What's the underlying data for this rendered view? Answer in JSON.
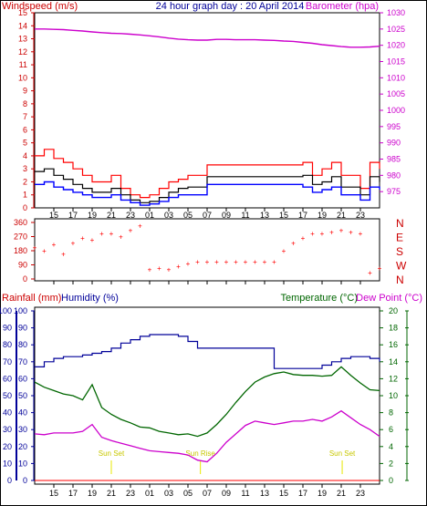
{
  "chart_data": [
    {
      "type": "line",
      "title": "24 hour graph day : 20 April 2014",
      "left_label": "Windspeed (m/s)",
      "right_label": "Barometer (hpa)",
      "y_left_range": [
        0,
        15
      ],
      "y_left_ticks": [
        "0",
        "1",
        "2",
        "3",
        "4",
        "5",
        "6",
        "7",
        "8",
        "9",
        "10",
        "11",
        "12",
        "13",
        "14",
        "15"
      ],
      "y_right_range": [
        970,
        1030
      ],
      "y_right_ticks": [
        "975",
        "980",
        "985",
        "990",
        "995",
        "1000",
        "1005",
        "1010",
        "1015",
        "1020",
        "1025",
        "1030"
      ],
      "x_hours": [
        13,
        14,
        15,
        16,
        17,
        18,
        19,
        20,
        21,
        22,
        23,
        24,
        25,
        26,
        27,
        28,
        29,
        30,
        31,
        32,
        33,
        34,
        35,
        36,
        37,
        38,
        39,
        40,
        41,
        42,
        43,
        44,
        45,
        46,
        47,
        48,
        49
      ],
      "barometer": [
        1025,
        1025,
        1024.9,
        1024.8,
        1024.6,
        1024.4,
        1024.1,
        1023.9,
        1023.7,
        1023.6,
        1023.4,
        1023.2,
        1022.9,
        1022.6,
        1022.2,
        1021.9,
        1021.7,
        1021.6,
        1021.6,
        1021.8,
        1021.8,
        1021.7,
        1021.7,
        1021.7,
        1021.6,
        1021.5,
        1021.3,
        1021.2,
        1020.9,
        1020.6,
        1020.2,
        1019.9,
        1019.6,
        1019.4,
        1019.4,
        1019.5,
        1019.7
      ],
      "gust": [
        4,
        4.5,
        3.8,
        3.5,
        3,
        2.5,
        2,
        2,
        2.5,
        1.5,
        1,
        0.8,
        1,
        1.5,
        2,
        2.2,
        2.5,
        2.5,
        3.3,
        3.3,
        3.3,
        3.3,
        3.3,
        3.3,
        3.3,
        3.3,
        3.3,
        3.3,
        3.5,
        2.5,
        3,
        3.5,
        2.5,
        2.5,
        1.5,
        3.5,
        3
      ],
      "wind_avg": [
        2.8,
        3,
        2.5,
        2.2,
        1.8,
        1.5,
        1.2,
        1.2,
        1.5,
        1,
        0.6,
        0.4,
        0.5,
        0.8,
        1.2,
        1.5,
        1.6,
        1.6,
        2.4,
        2.4,
        2.4,
        2.4,
        2.4,
        2.4,
        2.4,
        2.4,
        2.4,
        2.4,
        2.5,
        1.8,
        2,
        2.4,
        1.6,
        1.6,
        1,
        2.4,
        2
      ],
      "wind_low": [
        1.8,
        2,
        1.6,
        1.4,
        1.2,
        1,
        0.8,
        0.8,
        1,
        0.6,
        0.4,
        0.2,
        0.3,
        0.5,
        0.8,
        1,
        1,
        1,
        1.8,
        1.8,
        1.8,
        1.8,
        1.8,
        1.8,
        1.8,
        1.8,
        1.8,
        1.8,
        1.6,
        1.2,
        1.4,
        1.6,
        1,
        1,
        0.6,
        1.6,
        1.4
      ]
    },
    {
      "type": "scatter",
      "title": "",
      "y_left_range": [
        0,
        360
      ],
      "y_left_ticks": [
        "0",
        "90",
        "180",
        "270",
        "360"
      ],
      "right_labels": [
        "N",
        "W",
        "S",
        "E",
        "N"
      ],
      "x_hours": [
        13,
        14,
        15,
        16,
        17,
        18,
        19,
        20,
        21,
        22,
        23,
        24,
        25,
        26,
        27,
        28,
        29,
        30,
        31,
        32,
        33,
        34,
        35,
        36,
        37,
        38,
        39,
        40,
        41,
        42,
        43,
        44,
        45,
        46,
        47,
        48,
        49
      ],
      "direction": [
        200,
        180,
        220,
        160,
        230,
        260,
        250,
        290,
        290,
        270,
        310,
        340,
        60,
        70,
        60,
        80,
        100,
        110,
        110,
        110,
        110,
        110,
        110,
        110,
        110,
        110,
        180,
        230,
        260,
        290,
        290,
        300,
        310,
        300,
        290,
        40,
        70
      ]
    },
    {
      "type": "line",
      "title": "",
      "left_label_rainfall": "Rainfall (mm)",
      "left_label_humidity": "Humidity (%)",
      "right_label_temp": "Temperature (°C)",
      "right_label_dew": "Dew Point (°C)",
      "y_left_range": [
        0,
        100
      ],
      "y_left_ticks": [
        "0",
        "10",
        "20",
        "30",
        "40",
        "50",
        "60",
        "70",
        "80",
        "90",
        "100"
      ],
      "y_right_range": [
        0,
        20
      ],
      "y_right_ticks": [
        "0",
        "2",
        "4",
        "6",
        "8",
        "10",
        "12",
        "14",
        "16",
        "18",
        "20"
      ],
      "x_ticks": [
        "15",
        "17",
        "19",
        "21",
        "23",
        "01",
        "03",
        "05",
        "07",
        "09",
        "11",
        "13",
        "15",
        "17",
        "19",
        "21",
        "23"
      ],
      "x_tick_hours": [
        15,
        17,
        19,
        21,
        23,
        25,
        27,
        29,
        31,
        33,
        35,
        37,
        39,
        41,
        43,
        45,
        47
      ],
      "x_hours": [
        13,
        14,
        15,
        16,
        17,
        18,
        19,
        20,
        21,
        22,
        23,
        24,
        25,
        26,
        27,
        28,
        29,
        30,
        31,
        32,
        33,
        34,
        35,
        36,
        37,
        38,
        39,
        40,
        41,
        42,
        43,
        44,
        45,
        46,
        47,
        48,
        49
      ],
      "humidity": [
        67,
        70,
        72,
        73,
        73,
        74,
        75,
        76,
        78,
        81,
        83,
        85,
        86,
        86,
        86,
        85,
        82,
        78,
        78,
        78,
        78,
        78,
        78,
        78,
        78,
        66,
        66,
        66,
        66,
        66,
        68,
        70,
        72,
        73,
        73,
        72,
        70
      ],
      "temperature": [
        11.6,
        11,
        10.6,
        10.2,
        10,
        9.5,
        11.3,
        8.6,
        7.8,
        7.2,
        6.8,
        6.3,
        6.2,
        5.8,
        5.6,
        5.4,
        5.5,
        5.2,
        5.6,
        6.6,
        7.8,
        9.2,
        10.5,
        11.6,
        12.2,
        12.6,
        12.8,
        12.5,
        12.4,
        12.4,
        12.3,
        12.4,
        13.4,
        12.4,
        11.5,
        10.7,
        10.6
      ],
      "dewpoint": [
        5.5,
        5.4,
        5.6,
        5.6,
        5.6,
        5.8,
        6.6,
        5.1,
        4.7,
        4.4,
        4.1,
        3.8,
        3.5,
        3.4,
        3.3,
        3.2,
        3.0,
        2.4,
        2.2,
        3.2,
        4.5,
        5.5,
        6.5,
        7.0,
        6.8,
        6.6,
        6.8,
        7.0,
        7.0,
        7.2,
        7.0,
        7.5,
        8.2,
        7.4,
        6.6,
        6.0,
        5.2
      ],
      "rainfall": [
        0,
        0,
        0,
        0,
        0,
        0,
        0,
        0,
        0,
        0,
        0,
        0,
        0,
        0,
        0,
        0,
        0,
        0,
        0,
        0,
        0,
        0,
        0,
        0,
        0,
        0,
        0,
        0,
        0,
        0,
        0,
        0,
        0,
        0,
        0,
        0,
        0
      ],
      "events": [
        {
          "label": "Sun Set",
          "hour": 21
        },
        {
          "label": "Sun Rise",
          "hour": 30.3
        },
        {
          "label": "Sun Set",
          "hour": 45.1
        }
      ]
    }
  ],
  "colors": {
    "barometer": "#cc00cc",
    "gust": "#ff0000",
    "wind_avg": "#000000",
    "wind_low": "#0000ff",
    "direction": "#ff0000",
    "humidity": "#000099",
    "temperature": "#006600",
    "dewpoint": "#cc00cc",
    "rainfall": "#ff0000",
    "event": "#e8e800",
    "left_axis_wind": "#cc0000",
    "left_axis_rain": "#000099",
    "right_axis_baro": "#cc00cc",
    "right_axis_temp": "#006600"
  }
}
